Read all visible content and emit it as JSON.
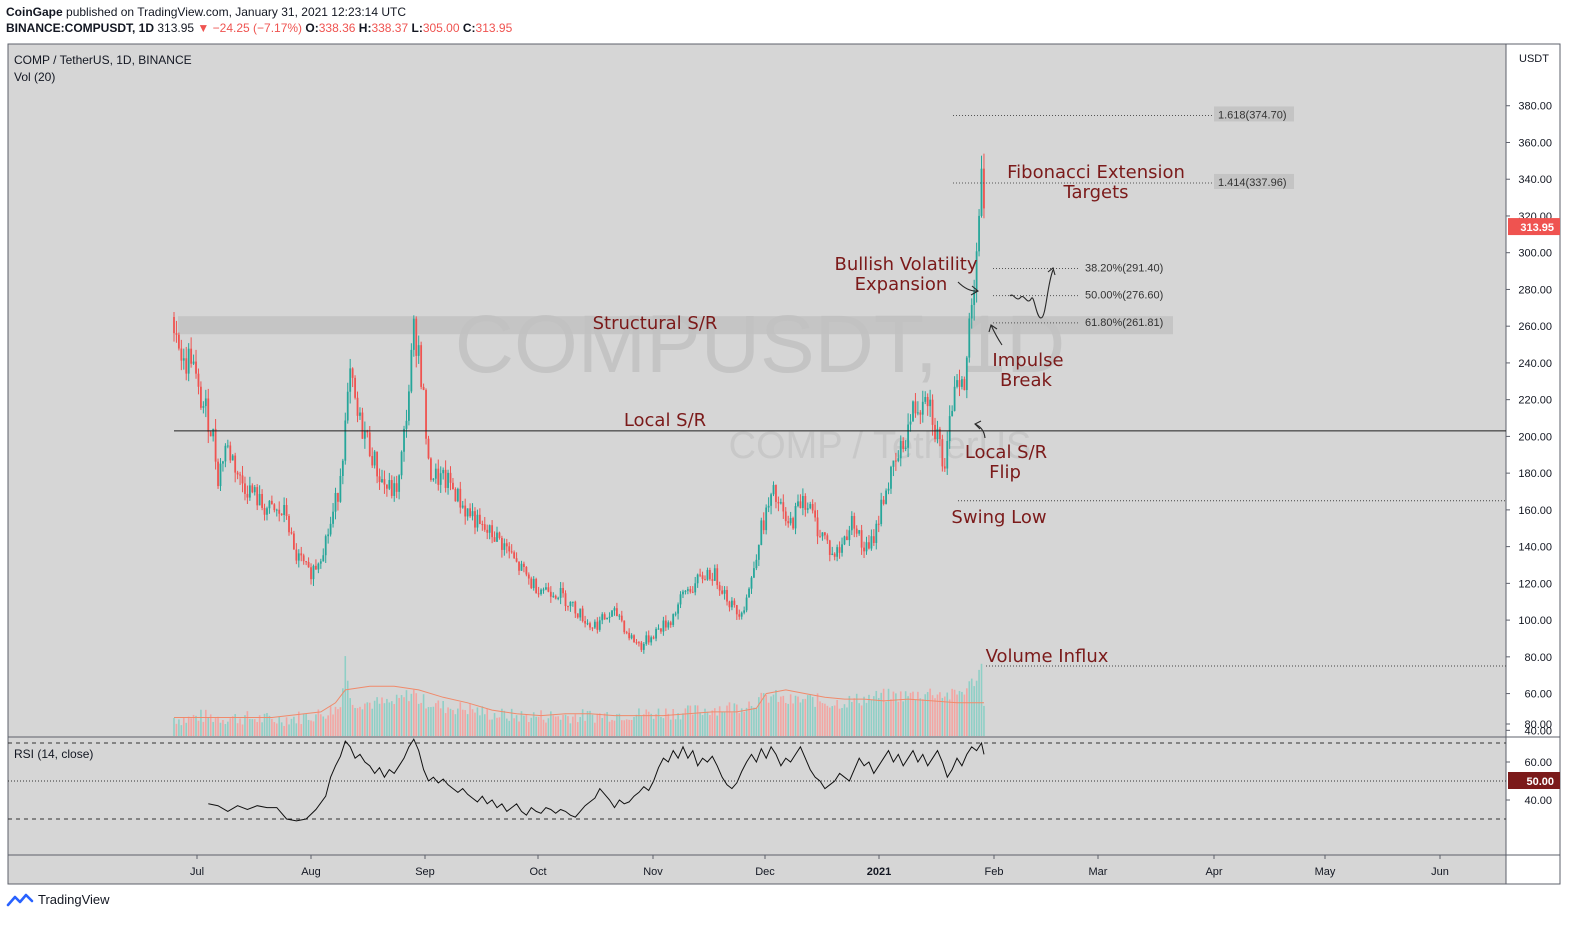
{
  "header": {
    "publisher": "CoinGape",
    "published_text": "published on TradingView.com, January 31, 2021 12:23:14 UTC",
    "symbol": "BINANCE:COMPUSDT, 1D",
    "last": "313.95",
    "change": "−24.25 (−7.17%)",
    "open_label": "O:",
    "open": "338.36",
    "high_label": "H:",
    "high": "338.37",
    "low_label": "L:",
    "low": "305.00",
    "close_label": "C:",
    "close": "313.95"
  },
  "pane": {
    "title": "COMP / TetherUS, 1D, BINANCE",
    "vol_label": "Vol (20)",
    "watermark": "COMPUSDT, 1D",
    "watermark_sub": "COMP / TetherUS",
    "currency": "USDT"
  },
  "rsi": {
    "label": "RSI (14, close)",
    "value_badge": "50.00"
  },
  "footer": {
    "brand": "TradingView"
  },
  "colors": {
    "background": "#d6d6d6",
    "up": "#26a69a",
    "down": "#ef5350",
    "annotation": "#7b1a1a",
    "badge_red": "#ef5350",
    "badge_dark": "#7b1a1a",
    "volume_ma": "#f08a6b"
  },
  "annotations": {
    "fib_title_1": "Fibonacci Extension",
    "fib_title_2": "Targets",
    "bullish_1": "Bullish Volatility",
    "bullish_2": "Expansion",
    "structural": "Structural S/R",
    "local": "Local S/R",
    "impulse_1": "Impulse",
    "impulse_2": "Break",
    "flip_1": "Local S/R",
    "flip_2": "Flip",
    "swing": "Swing Low",
    "volume": "Volume Influx"
  },
  "chart_data": {
    "type": "candlestick",
    "ylim": [
      40,
      400
    ],
    "y_ticks": [
      40,
      60,
      80,
      100,
      120,
      140,
      160,
      180,
      200,
      220,
      240,
      260,
      280,
      300,
      320,
      340,
      360,
      380
    ],
    "y_tick_labels": [
      "40.00",
      "60.00",
      "80.00",
      "100.00",
      "120.00",
      "140.00",
      "160.00",
      "180.00",
      "200.00",
      "220.00",
      "240.00",
      "260.00",
      "280.00",
      "300.00",
      "320.00",
      "340.00",
      "360.00",
      "380.00"
    ],
    "price_badge": "313.95",
    "x_labels": [
      "Jul",
      "Aug",
      "Sep",
      "Oct",
      "Nov",
      "Dec",
      "2021",
      "Feb",
      "Mar",
      "Apr",
      "May",
      "Jun"
    ],
    "levels": {
      "local_sr": 203,
      "structural_sr": 260,
      "swing_low": 165,
      "volume_influx": 75
    },
    "fib_levels": [
      {
        "label": "1.618(374.70)",
        "value": 374.7
      },
      {
        "label": "1.414(337.96)",
        "value": 337.96
      },
      {
        "label": "38.20%(291.40)",
        "value": 291.4
      },
      {
        "label": "50.00%(276.60)",
        "value": 276.6
      },
      {
        "label": "61.80%(261.81)",
        "value": 261.81
      }
    ],
    "price_path": [
      [
        0,
        265
      ],
      [
        4,
        238
      ],
      [
        7,
        245
      ],
      [
        10,
        222
      ],
      [
        13,
        214
      ],
      [
        16,
        200
      ],
      [
        18,
        178
      ],
      [
        21,
        195
      ],
      [
        24,
        188
      ],
      [
        27,
        176
      ],
      [
        30,
        172
      ],
      [
        33,
        168
      ],
      [
        36,
        162
      ],
      [
        39,
        160
      ],
      [
        42,
        158
      ],
      [
        46,
        158
      ],
      [
        49,
        136
      ],
      [
        52,
        132
      ],
      [
        55,
        125
      ],
      [
        58,
        130
      ],
      [
        61,
        140
      ],
      [
        64,
        152
      ],
      [
        67,
        170
      ],
      [
        70,
        205
      ],
      [
        72,
        232
      ],
      [
        75,
        210
      ],
      [
        78,
        202
      ],
      [
        81,
        190
      ],
      [
        84,
        178
      ],
      [
        87,
        172
      ],
      [
        90,
        170
      ],
      [
        92,
        176
      ],
      [
        94,
        200
      ],
      [
        96,
        226
      ],
      [
        98,
        257
      ],
      [
        100,
        248
      ],
      [
        102,
        220
      ],
      [
        104,
        182
      ],
      [
        107,
        178
      ],
      [
        110,
        176
      ],
      [
        113,
        174
      ],
      [
        116,
        167
      ],
      [
        119,
        160
      ],
      [
        122,
        157
      ],
      [
        125,
        150
      ],
      [
        128,
        148
      ],
      [
        131,
        146
      ],
      [
        134,
        142
      ],
      [
        137,
        137
      ],
      [
        140,
        130
      ],
      [
        143,
        126
      ],
      [
        146,
        120
      ],
      [
        149,
        118
      ],
      [
        152,
        117
      ],
      [
        155,
        116
      ],
      [
        158,
        114
      ],
      [
        161,
        110
      ],
      [
        164,
        106
      ],
      [
        167,
        102
      ],
      [
        170,
        97
      ],
      [
        173,
        98
      ],
      [
        176,
        101
      ],
      [
        179,
        103
      ],
      [
        182,
        103
      ],
      [
        185,
        93
      ],
      [
        188,
        89
      ],
      [
        191,
        86
      ],
      [
        194,
        90
      ],
      [
        197,
        94
      ],
      [
        200,
        97
      ],
      [
        203,
        100
      ],
      [
        206,
        108
      ],
      [
        209,
        116
      ],
      [
        212,
        118
      ],
      [
        215,
        122
      ],
      [
        218,
        126
      ],
      [
        221,
        124
      ],
      [
        224,
        118
      ],
      [
        227,
        110
      ],
      [
        230,
        104
      ],
      [
        233,
        108
      ],
      [
        236,
        122
      ],
      [
        239,
        145
      ],
      [
        242,
        158
      ],
      [
        245,
        168
      ],
      [
        248,
        160
      ],
      [
        251,
        150
      ],
      [
        254,
        158
      ],
      [
        257,
        168
      ],
      [
        260,
        160
      ],
      [
        263,
        150
      ],
      [
        266,
        145
      ],
      [
        269,
        135
      ],
      [
        272,
        138
      ],
      [
        275,
        148
      ],
      [
        278,
        155
      ],
      [
        281,
        140
      ],
      [
        284,
        138
      ],
      [
        287,
        150
      ],
      [
        290,
        168
      ],
      [
        293,
        178
      ],
      [
        296,
        188
      ],
      [
        299,
        200
      ],
      [
        302,
        214
      ],
      [
        305,
        218
      ],
      [
        307,
        228
      ],
      [
        309,
        218
      ],
      [
        311,
        205
      ],
      [
        313,
        196
      ],
      [
        315,
        178
      ],
      [
        317,
        205
      ],
      [
        319,
        232
      ],
      [
        321,
        235
      ],
      [
        323,
        222
      ],
      [
        325,
        262
      ],
      [
        327,
        288
      ],
      [
        329,
        322
      ],
      [
        330,
        338
      ],
      [
        331,
        313.95
      ]
    ],
    "volume_path": [
      [
        0,
        46
      ],
      [
        5,
        45
      ],
      [
        10,
        47
      ],
      [
        20,
        46
      ],
      [
        30,
        46
      ],
      [
        40,
        45
      ],
      [
        50,
        46
      ],
      [
        60,
        48
      ],
      [
        68,
        52
      ],
      [
        70,
        80
      ],
      [
        72,
        55
      ],
      [
        80,
        54
      ],
      [
        90,
        54
      ],
      [
        95,
        58
      ],
      [
        98,
        60
      ],
      [
        100,
        56
      ],
      [
        110,
        52
      ],
      [
        120,
        51
      ],
      [
        130,
        48
      ],
      [
        140,
        47
      ],
      [
        150,
        47
      ],
      [
        160,
        47
      ],
      [
        170,
        47
      ],
      [
        180,
        48
      ],
      [
        190,
        48
      ],
      [
        200,
        49
      ],
      [
        210,
        49
      ],
      [
        220,
        51
      ],
      [
        230,
        52
      ],
      [
        240,
        56
      ],
      [
        245,
        58
      ],
      [
        250,
        55
      ],
      [
        260,
        56
      ],
      [
        270,
        54
      ],
      [
        280,
        56
      ],
      [
        290,
        58
      ],
      [
        300,
        58
      ],
      [
        310,
        60
      ],
      [
        318,
        58
      ],
      [
        324,
        62
      ],
      [
        328,
        68
      ],
      [
        330,
        74
      ],
      [
        331,
        55
      ]
    ],
    "volume_ma_path": [
      [
        0,
        47
      ],
      [
        20,
        47
      ],
      [
        40,
        47
      ],
      [
        60,
        50
      ],
      [
        66,
        55
      ],
      [
        70,
        62
      ],
      [
        80,
        64
      ],
      [
        90,
        64
      ],
      [
        100,
        62
      ],
      [
        110,
        58
      ],
      [
        120,
        55
      ],
      [
        130,
        51
      ],
      [
        140,
        49
      ],
      [
        150,
        48
      ],
      [
        160,
        49
      ],
      [
        170,
        49
      ],
      [
        180,
        48
      ],
      [
        190,
        48
      ],
      [
        200,
        48
      ],
      [
        210,
        49
      ],
      [
        220,
        50
      ],
      [
        230,
        50
      ],
      [
        238,
        52
      ],
      [
        242,
        60
      ],
      [
        250,
        62
      ],
      [
        258,
        60
      ],
      [
        266,
        58
      ],
      [
        274,
        57
      ],
      [
        282,
        57
      ],
      [
        290,
        56
      ],
      [
        300,
        57
      ],
      [
        310,
        56
      ],
      [
        320,
        55
      ],
      [
        331,
        55
      ]
    ],
    "rsi": {
      "ylim": [
        20,
        80
      ],
      "y_ticks": [
        40,
        60,
        80
      ],
      "y_tick_labels": [
        "40.00",
        "60.00",
        "80.00"
      ],
      "overbought": 70,
      "oversold": 30,
      "mid": 50,
      "path": [
        [
          14,
          38
        ],
        [
          18,
          37
        ],
        [
          22,
          34
        ],
        [
          26,
          37
        ],
        [
          30,
          35
        ],
        [
          34,
          37
        ],
        [
          38,
          36
        ],
        [
          42,
          36
        ],
        [
          46,
          30
        ],
        [
          50,
          29
        ],
        [
          54,
          30
        ],
        [
          58,
          35
        ],
        [
          62,
          42
        ],
        [
          64,
          52
        ],
        [
          66,
          58
        ],
        [
          68,
          63
        ],
        [
          70,
          71
        ],
        [
          72,
          68
        ],
        [
          74,
          62
        ],
        [
          76,
          64
        ],
        [
          78,
          60
        ],
        [
          80,
          58
        ],
        [
          82,
          54
        ],
        [
          84,
          57
        ],
        [
          86,
          52
        ],
        [
          88,
          56
        ],
        [
          90,
          54
        ],
        [
          92,
          58
        ],
        [
          94,
          62
        ],
        [
          96,
          68
        ],
        [
          98,
          72
        ],
        [
          100,
          66
        ],
        [
          102,
          56
        ],
        [
          104,
          50
        ],
        [
          106,
          52
        ],
        [
          108,
          49
        ],
        [
          110,
          51
        ],
        [
          112,
          48
        ],
        [
          114,
          46
        ],
        [
          116,
          44
        ],
        [
          118,
          46
        ],
        [
          120,
          43
        ],
        [
          122,
          41
        ],
        [
          124,
          39
        ],
        [
          126,
          42
        ],
        [
          128,
          38
        ],
        [
          130,
          40
        ],
        [
          132,
          36
        ],
        [
          134,
          38
        ],
        [
          136,
          34
        ],
        [
          138,
          36
        ],
        [
          140,
          38
        ],
        [
          142,
          34
        ],
        [
          144,
          32
        ],
        [
          146,
          36
        ],
        [
          148,
          34
        ],
        [
          150,
          33
        ],
        [
          152,
          36
        ],
        [
          154,
          35
        ],
        [
          156,
          33
        ],
        [
          158,
          35
        ],
        [
          160,
          34
        ],
        [
          162,
          32
        ],
        [
          164,
          31
        ],
        [
          166,
          34
        ],
        [
          168,
          37
        ],
        [
          170,
          39
        ],
        [
          172,
          41
        ],
        [
          174,
          46
        ],
        [
          176,
          43
        ],
        [
          178,
          40
        ],
        [
          180,
          36
        ],
        [
          182,
          40
        ],
        [
          184,
          38
        ],
        [
          186,
          39
        ],
        [
          188,
          42
        ],
        [
          190,
          44
        ],
        [
          192,
          47
        ],
        [
          194,
          45
        ],
        [
          196,
          50
        ],
        [
          198,
          57
        ],
        [
          200,
          62
        ],
        [
          202,
          60
        ],
        [
          204,
          66
        ],
        [
          206,
          62
        ],
        [
          208,
          68
        ],
        [
          210,
          62
        ],
        [
          212,
          66
        ],
        [
          214,
          58
        ],
        [
          216,
          62
        ],
        [
          218,
          60
        ],
        [
          220,
          63
        ],
        [
          222,
          58
        ],
        [
          224,
          52
        ],
        [
          226,
          48
        ],
        [
          228,
          46
        ],
        [
          230,
          49
        ],
        [
          232,
          55
        ],
        [
          234,
          60
        ],
        [
          236,
          64
        ],
        [
          238,
          60
        ],
        [
          240,
          67
        ],
        [
          242,
          62
        ],
        [
          244,
          68
        ],
        [
          246,
          64
        ],
        [
          248,
          58
        ],
        [
          250,
          62
        ],
        [
          252,
          60
        ],
        [
          254,
          64
        ],
        [
          256,
          68
        ],
        [
          258,
          62
        ],
        [
          260,
          56
        ],
        [
          262,
          52
        ],
        [
          264,
          50
        ],
        [
          266,
          46
        ],
        [
          268,
          48
        ],
        [
          270,
          50
        ],
        [
          272,
          54
        ],
        [
          274,
          52
        ],
        [
          276,
          50
        ],
        [
          278,
          56
        ],
        [
          280,
          62
        ],
        [
          282,
          58
        ],
        [
          284,
          60
        ],
        [
          286,
          54
        ],
        [
          288,
          58
        ],
        [
          290,
          62
        ],
        [
          292,
          66
        ],
        [
          294,
          60
        ],
        [
          296,
          64
        ],
        [
          298,
          58
        ],
        [
          300,
          62
        ],
        [
          302,
          66
        ],
        [
          304,
          60
        ],
        [
          306,
          64
        ],
        [
          308,
          58
        ],
        [
          310,
          62
        ],
        [
          312,
          66
        ],
        [
          314,
          60
        ],
        [
          316,
          52
        ],
        [
          318,
          56
        ],
        [
          320,
          62
        ],
        [
          322,
          58
        ],
        [
          324,
          64
        ],
        [
          326,
          68
        ],
        [
          328,
          66
        ],
        [
          330,
          70
        ],
        [
          331,
          64
        ]
      ]
    }
  }
}
